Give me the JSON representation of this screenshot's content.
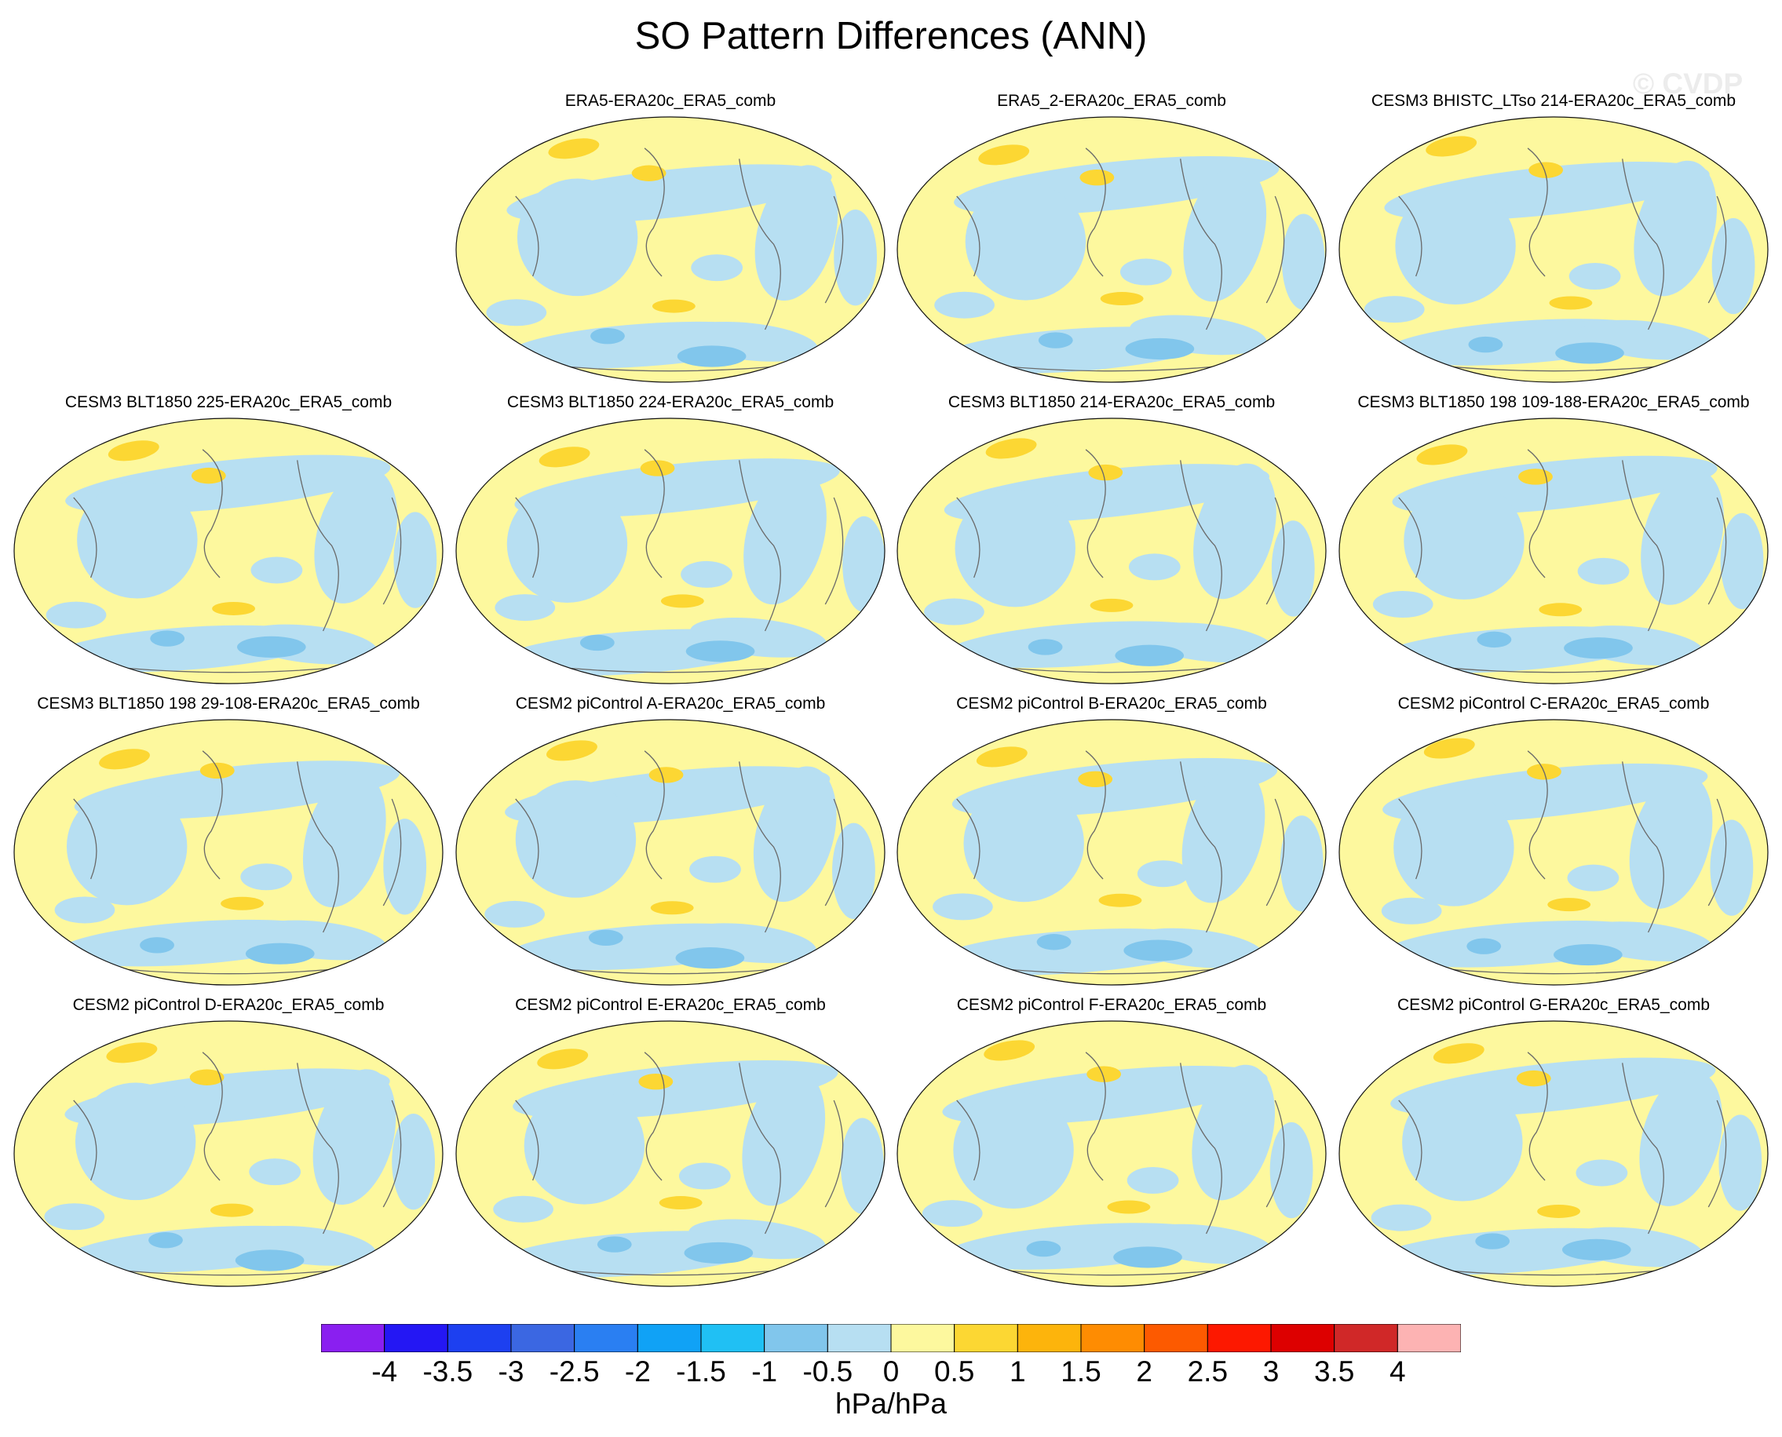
{
  "title": "SO Pattern Differences (ANN)",
  "watermark": "© CVDP",
  "units": "hPa/hPa",
  "colorbar": {
    "labels": [
      "-4",
      "-3.5",
      "-3",
      "-2.5",
      "-2",
      "-1.5",
      "-1",
      "-0.5",
      "0",
      "0.5",
      "1",
      "1.5",
      "2",
      "2.5",
      "3",
      "3.5",
      "4"
    ],
    "colors": [
      "#8a1ff0",
      "#2417f4",
      "#1d40f0",
      "#3b67e2",
      "#2a7ff2",
      "#10a2f6",
      "#20c0f4",
      "#81c6ec",
      "#b7dff2",
      "#fdf89e",
      "#fcd733",
      "#fdb40c",
      "#fe8c02",
      "#fd5a00",
      "#fd1800",
      "#dd0000",
      "#d02828",
      "#fdb3b3"
    ]
  },
  "panels": [
    {
      "title": "",
      "empty": true
    },
    {
      "title": "ERA5-ERA20c_ERA5_comb"
    },
    {
      "title": "ERA5_2-ERA20c_ERA5_comb"
    },
    {
      "title": "CESM3 BHISTC_LTso 214-ERA20c_ERA5_comb"
    },
    {
      "title": "CESM3 BLT1850 225-ERA20c_ERA5_comb"
    },
    {
      "title": "CESM3 BLT1850 224-ERA20c_ERA5_comb"
    },
    {
      "title": "CESM3 BLT1850 214-ERA20c_ERA5_comb"
    },
    {
      "title": "CESM3 BLT1850 198 109-188-ERA20c_ERA5_comb"
    },
    {
      "title": "CESM3 BLT1850 198 29-108-ERA20c_ERA5_comb"
    },
    {
      "title": "CESM2 piControl A-ERA20c_ERA5_comb"
    },
    {
      "title": "CESM2 piControl B-ERA20c_ERA5_comb"
    },
    {
      "title": "CESM2 piControl C-ERA20c_ERA5_comb"
    },
    {
      "title": "CESM2 piControl D-ERA20c_ERA5_comb"
    },
    {
      "title": "CESM2 piControl E-ERA20c_ERA5_comb"
    },
    {
      "title": "CESM2 piControl F-ERA20c_ERA5_comb"
    },
    {
      "title": "CESM2 piControl G-ERA20c_ERA5_comb"
    }
  ]
}
